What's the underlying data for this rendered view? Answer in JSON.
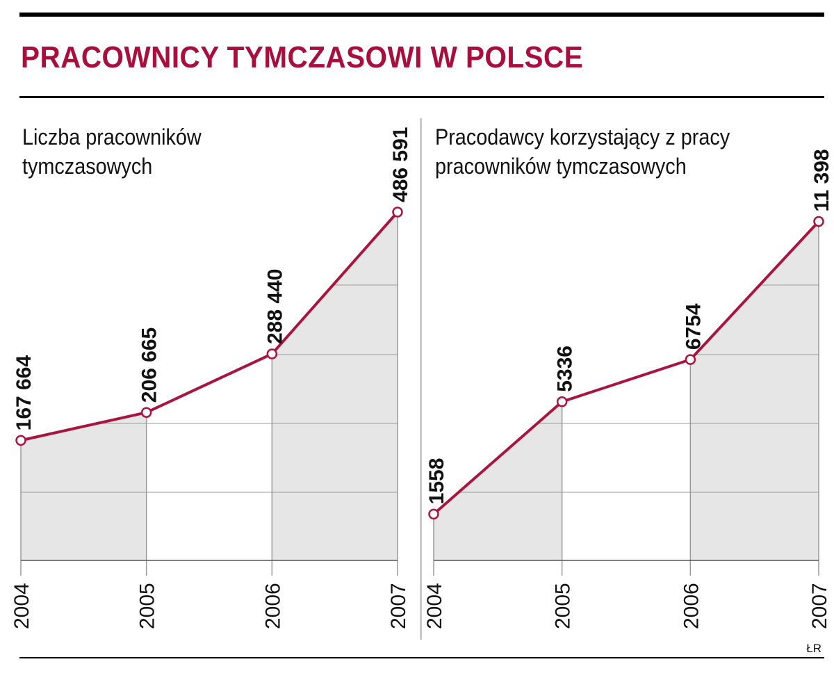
{
  "title": "PRACOWNICY TYMCZASOWI W POLSCE",
  "credit": "ŁR",
  "colors": {
    "title": "#a80f3d",
    "line": "#a8153f",
    "fill": "#e6e6e6",
    "grid": "#9a9a9a",
    "marker_fill": "#ffffff"
  },
  "chart_data": [
    {
      "type": "area",
      "title": "Liczba pracowników tymczasowych",
      "x": [
        "2004",
        "2005",
        "2006",
        "2007"
      ],
      "values": [
        167664,
        206665,
        288440,
        486591
      ],
      "labels": [
        "167 664",
        "206 665",
        "288 440",
        "486 591"
      ],
      "ylim": [
        0,
        540000
      ],
      "grid": true
    },
    {
      "type": "area",
      "title": "Pracodawcy korzystający z pracy pracowników tymczasowych",
      "x": [
        "2004",
        "2005",
        "2006",
        "2007"
      ],
      "values": [
        1558,
        5336,
        6754,
        11398
      ],
      "labels": [
        "1558",
        "5336",
        "6754",
        "11 398"
      ],
      "ylim": [
        0,
        13000
      ],
      "grid": true
    }
  ]
}
